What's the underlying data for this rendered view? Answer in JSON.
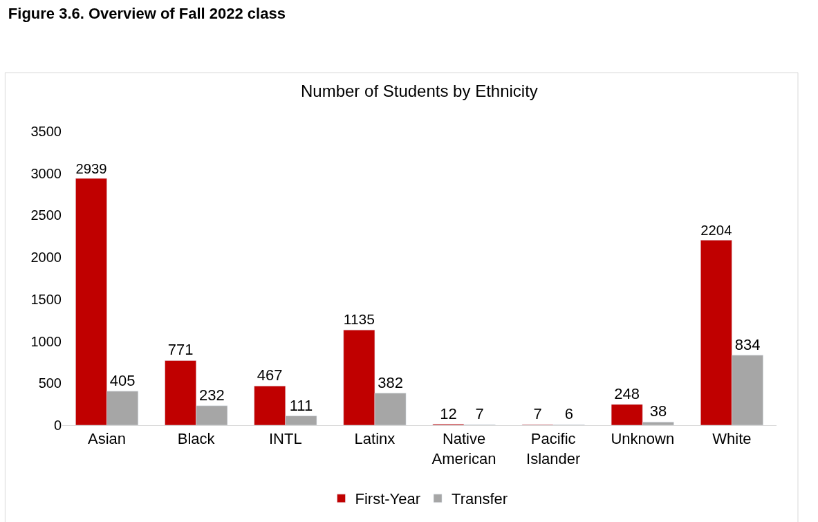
{
  "chart_data": {
    "type": "bar",
    "title": "Figure 3.6. Overview of Fall 2022 class",
    "subtitle": "Number of Students by Ethnicity",
    "categories": [
      "Asian",
      "Black",
      "INTL",
      "Latinx",
      "Native American",
      "Pacific Islander",
      "Unknown",
      "White"
    ],
    "series": [
      {
        "name": "First-Year",
        "color": "#c00000",
        "values": [
          2939,
          771,
          467,
          1135,
          12,
          7,
          248,
          2204
        ]
      },
      {
        "name": "Transfer",
        "color": "#a6a6a6",
        "values": [
          405,
          232,
          111,
          382,
          7,
          6,
          38,
          834
        ]
      }
    ],
    "ylim": [
      0,
      3500
    ],
    "yticks": [
      0,
      500,
      1000,
      1500,
      2000,
      2500,
      3000,
      3500
    ],
    "legend": "bottom",
    "data_labels": true
  }
}
